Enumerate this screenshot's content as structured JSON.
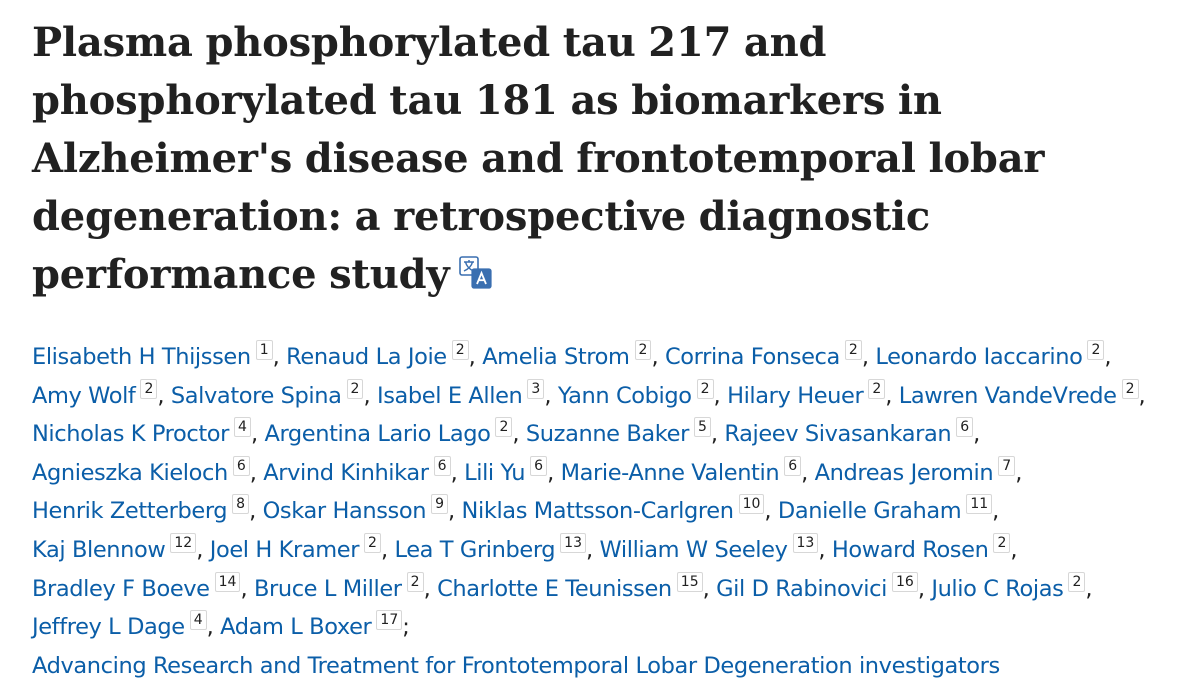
{
  "article": {
    "title": "Plasma phosphorylated tau 217 and phosphorylated tau 181 as biomarkers in Alzheimer's disease and frontotemporal lobar degeneration: a retrospective diagnostic performance study",
    "translate_icon": "translate-icon"
  },
  "authors": [
    {
      "name": "Elisabeth H Thijssen",
      "aff": "1"
    },
    {
      "name": "Renaud La Joie",
      "aff": "2"
    },
    {
      "name": "Amelia Strom",
      "aff": "2"
    },
    {
      "name": "Corrina Fonseca",
      "aff": "2"
    },
    {
      "name": "Leonardo Iaccarino",
      "aff": "2"
    },
    {
      "name": "Amy Wolf",
      "aff": "2"
    },
    {
      "name": "Salvatore Spina",
      "aff": "2"
    },
    {
      "name": "Isabel E Allen",
      "aff": "3"
    },
    {
      "name": "Yann Cobigo",
      "aff": "2"
    },
    {
      "name": "Hilary Heuer",
      "aff": "2"
    },
    {
      "name": "Lawren VandeVrede",
      "aff": "2"
    },
    {
      "name": "Nicholas K Proctor",
      "aff": "4"
    },
    {
      "name": "Argentina Lario Lago",
      "aff": "2"
    },
    {
      "name": "Suzanne Baker",
      "aff": "5"
    },
    {
      "name": "Rajeev Sivasankaran",
      "aff": "6"
    },
    {
      "name": "Agnieszka Kieloch",
      "aff": "6"
    },
    {
      "name": "Arvind Kinhikar",
      "aff": "6"
    },
    {
      "name": "Lili Yu",
      "aff": "6"
    },
    {
      "name": "Marie-Anne Valentin",
      "aff": "6"
    },
    {
      "name": "Andreas Jeromin",
      "aff": "7"
    },
    {
      "name": "Henrik Zetterberg",
      "aff": "8"
    },
    {
      "name": "Oskar Hansson",
      "aff": "9"
    },
    {
      "name": "Niklas Mattsson-Carlgren",
      "aff": "10"
    },
    {
      "name": "Danielle Graham",
      "aff": "11"
    },
    {
      "name": "Kaj Blennow",
      "aff": "12"
    },
    {
      "name": "Joel H Kramer",
      "aff": "2"
    },
    {
      "name": "Lea T Grinberg",
      "aff": "13"
    },
    {
      "name": "William W Seeley",
      "aff": "13"
    },
    {
      "name": "Howard Rosen",
      "aff": "2"
    },
    {
      "name": "Bradley F Boeve",
      "aff": "14"
    },
    {
      "name": "Bruce L Miller",
      "aff": "2"
    },
    {
      "name": "Charlotte E Teunissen",
      "aff": "15"
    },
    {
      "name": "Gil D Rabinovici",
      "aff": "16"
    },
    {
      "name": "Julio C Rojas",
      "aff": "2"
    },
    {
      "name": "Jeffrey L Dage",
      "aff": "4"
    },
    {
      "name": "Adam L Boxer",
      "aff": "17"
    }
  ],
  "author_group": "Advancing Research and Treatment for Frontotemporal Lobar Degeneration investigators",
  "colors": {
    "link": "#0b5ea8",
    "text": "#212121"
  }
}
